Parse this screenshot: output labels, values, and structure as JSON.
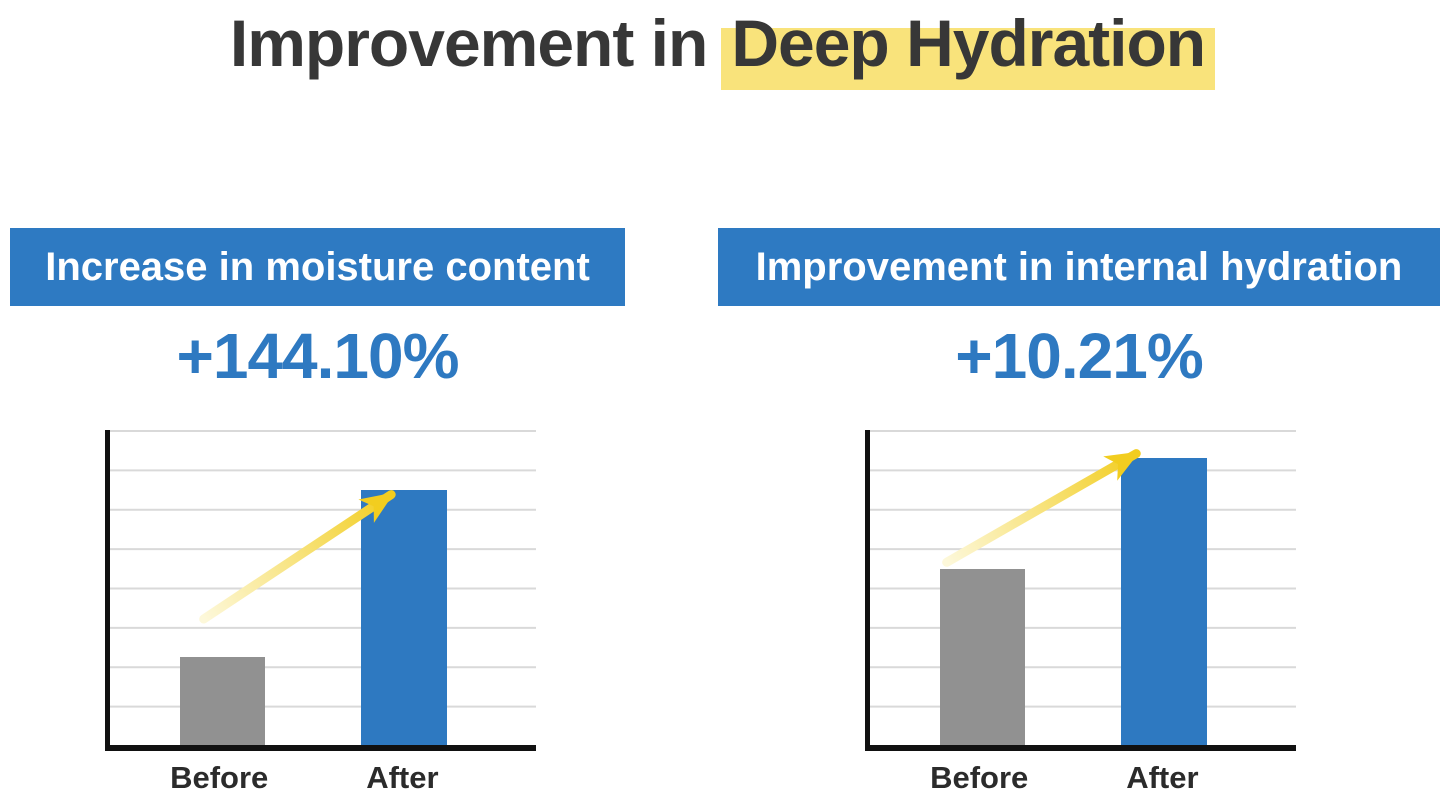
{
  "title": {
    "prefix": "Improvement in",
    "highlight": "Deep Hydration"
  },
  "colors": {
    "title_color": "#373737",
    "highlight_yellow": "#f9e37b",
    "banner_blue": "#2e7ac2",
    "percent_blue": "#2e79c1",
    "bar_blue": "#2e79c1",
    "bar_gray": "#919191",
    "arrow_yellow": "#f2cd1f",
    "gridline_color": "#d9d9d9",
    "axis_color": "#111111",
    "label_color": "#2b2b2b"
  },
  "chart_data": [
    {
      "type": "bar",
      "title": "Increase in moisture content",
      "delta_label": "+144.10%",
      "categories": [
        "Before",
        "After"
      ],
      "values": [
        28,
        81
      ],
      "value_unit": "relative height, % of plot (y-axis unlabeled)",
      "series_colors": [
        "#919191",
        "#2e79c1"
      ],
      "ylim": [
        0,
        100
      ],
      "grid": true,
      "gridline_intervals": 8,
      "annotation": "yellow upward trend arrow from Before toward top of After bar",
      "arrow": {
        "from": [
          22,
          60
        ],
        "to": [
          66,
          20.5
        ]
      }
    },
    {
      "type": "bar",
      "title": "Improvement in internal hydration",
      "delta_label": "+10.21%",
      "categories": [
        "Before",
        "After"
      ],
      "values": [
        56,
        91
      ],
      "value_unit": "relative height, % of plot (y-axis unlabeled)",
      "series_colors": [
        "#919191",
        "#2e79c1"
      ],
      "ylim": [
        0,
        100
      ],
      "grid": true,
      "gridline_intervals": 8,
      "annotation": "yellow upward trend arrow from Before toward top of After bar",
      "arrow": {
        "from": [
          18,
          42
        ],
        "to": [
          62.5,
          7.5
        ]
      }
    }
  ]
}
